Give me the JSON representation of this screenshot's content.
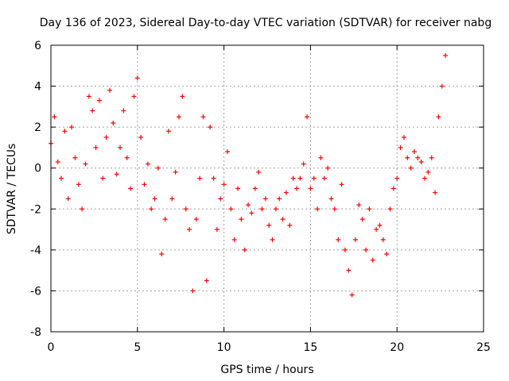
{
  "chart_data": {
    "type": "scatter",
    "title": "Day 136 of 2023, Sidereal Day-to-day VTEC variation (SDTVAR) for receiver nabg",
    "xlabel": "GPS time / hours",
    "ylabel": "SDTVAR / TECUs",
    "xlim": [
      0,
      25
    ],
    "ylim": [
      -8,
      6
    ],
    "xticks": [
      0,
      5,
      10,
      15,
      20,
      25
    ],
    "yticks": [
      -8,
      -6,
      -4,
      -2,
      0,
      2,
      4,
      6
    ],
    "grid": true,
    "marker": "+",
    "color": "#ff0000",
    "series": [
      {
        "name": "SDTVAR",
        "x": [
          0.0,
          0.2,
          0.4,
          0.6,
          0.8,
          1.0,
          1.2,
          1.4,
          1.6,
          1.8,
          2.0,
          2.2,
          2.4,
          2.6,
          2.8,
          3.0,
          3.2,
          3.4,
          3.6,
          3.8,
          4.0,
          4.2,
          4.4,
          4.6,
          4.8,
          5.0,
          5.2,
          5.4,
          5.6,
          5.8,
          6.0,
          6.2,
          6.4,
          6.6,
          6.8,
          7.0,
          7.2,
          7.4,
          7.6,
          7.8,
          8.0,
          8.2,
          8.4,
          8.6,
          8.8,
          9.0,
          9.2,
          9.4,
          9.6,
          9.8,
          10.0,
          10.2,
          10.4,
          10.6,
          10.8,
          11.0,
          11.2,
          11.4,
          11.6,
          11.8,
          12.0,
          12.2,
          12.4,
          12.6,
          12.8,
          13.0,
          13.2,
          13.4,
          13.6,
          13.8,
          14.0,
          14.2,
          14.4,
          14.6,
          14.8,
          15.0,
          15.2,
          15.4,
          15.6,
          15.8,
          16.0,
          16.2,
          16.4,
          16.6,
          16.8,
          17.0,
          17.2,
          17.4,
          17.6,
          17.8,
          18.0,
          18.2,
          18.4,
          18.6,
          18.8,
          19.0,
          19.2,
          19.4,
          19.6,
          19.8,
          20.0,
          20.2,
          20.4,
          20.6,
          20.8,
          21.0,
          21.2,
          21.4,
          21.6,
          21.8,
          22.0,
          22.2,
          22.4,
          22.6,
          22.8
        ],
        "y": [
          1.2,
          2.5,
          0.3,
          -0.5,
          1.8,
          -1.5,
          2.0,
          0.5,
          -0.8,
          -2.0,
          0.2,
          3.5,
          2.8,
          1.0,
          3.3,
          -0.5,
          1.5,
          3.8,
          2.2,
          -0.3,
          1.0,
          2.8,
          0.5,
          -1.0,
          3.5,
          4.4,
          1.5,
          -0.8,
          0.2,
          -2.0,
          -1.5,
          0.0,
          -4.2,
          -2.5,
          1.8,
          -1.5,
          -0.2,
          2.5,
          3.5,
          -2.0,
          -3.0,
          -6.0,
          -2.5,
          -0.5,
          2.5,
          -5.5,
          2.0,
          -0.5,
          -3.0,
          -1.5,
          -0.8,
          0.8,
          -2.0,
          -3.5,
          -1.0,
          -2.5,
          -4.0,
          -1.8,
          -2.2,
          -1.0,
          -0.2,
          -2.0,
          -1.5,
          -2.8,
          -3.5,
          -2.0,
          -1.5,
          -2.5,
          -1.2,
          -2.8,
          -0.5,
          -1.0,
          -0.5,
          0.2,
          2.5,
          -1.0,
          -0.5,
          -2.0,
          0.5,
          -0.5,
          0.0,
          -1.5,
          -2.0,
          -3.5,
          -0.8,
          -4.0,
          -5.0,
          -6.2,
          -3.5,
          -1.8,
          -2.5,
          -4.0,
          -2.0,
          -4.5,
          -3.0,
          -2.8,
          -3.5,
          -4.2,
          -2.0,
          -1.0,
          -0.5,
          1.0,
          1.5,
          0.5,
          0.0,
          0.8,
          0.5,
          0.3,
          -0.5,
          -0.2,
          0.5,
          -1.2,
          2.5,
          4.0,
          5.5
        ]
      }
    ]
  }
}
